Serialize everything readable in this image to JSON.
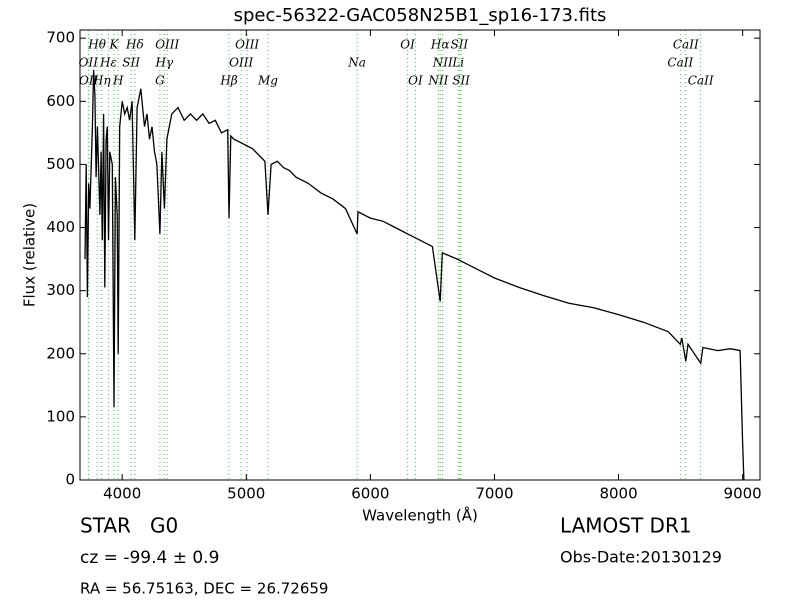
{
  "chart_data": {
    "type": "line",
    "title": "spec-56322-GAC058N25B1_sp16-173.fits",
    "x_label": "Wavelength (Å)",
    "y_label": "Flux (relative)",
    "xlim": [
      3660,
      9140
    ],
    "ylim": [
      0,
      713
    ],
    "xticks": [
      4000,
      5000,
      6000,
      7000,
      8000,
      9000
    ],
    "yticks": [
      0,
      100,
      200,
      300,
      400,
      500,
      600,
      700
    ],
    "color": "#000000",
    "line_color": "#55bb55",
    "x": [
      3700,
      3710,
      3720,
      3730,
      3740,
      3760,
      3770,
      3780,
      3790,
      3800,
      3820,
      3830,
      3840,
      3850,
      3860,
      3870,
      3880,
      3890,
      3900,
      3920,
      3934,
      3945,
      3960,
      3968,
      3980,
      4000,
      4020,
      4040,
      4060,
      4080,
      4102,
      4120,
      4150,
      4180,
      4200,
      4220,
      4240,
      4260,
      4280,
      4304,
      4320,
      4340,
      4360,
      4380,
      4400,
      4450,
      4500,
      4550,
      4600,
      4650,
      4700,
      4750,
      4800,
      4850,
      4861,
      4875,
      4900,
      4950,
      5000,
      5050,
      5100,
      5150,
      5175,
      5200,
      5250,
      5300,
      5350,
      5400,
      5500,
      5600,
      5700,
      5800,
      5893,
      5900,
      6000,
      6100,
      6200,
      6300,
      6400,
      6500,
      6563,
      6580,
      6700,
      6800,
      6900,
      7000,
      7200,
      7400,
      7600,
      7800,
      8000,
      8200,
      8400,
      8498,
      8510,
      8542,
      8560,
      8662,
      8680,
      8800,
      8900,
      8980,
      9000,
      9010
    ],
    "values": [
      350,
      500,
      290,
      470,
      430,
      560,
      650,
      610,
      480,
      560,
      420,
      520,
      380,
      580,
      305,
      540,
      560,
      380,
      520,
      500,
      115,
      480,
      420,
      200,
      560,
      600,
      580,
      590,
      570,
      600,
      380,
      590,
      620,
      560,
      580,
      540,
      560,
      520,
      500,
      390,
      520,
      430,
      540,
      560,
      580,
      590,
      570,
      580,
      570,
      580,
      565,
      570,
      550,
      555,
      415,
      545,
      540,
      535,
      530,
      525,
      515,
      505,
      420,
      500,
      505,
      495,
      490,
      480,
      470,
      455,
      445,
      430,
      390,
      425,
      415,
      410,
      400,
      390,
      380,
      370,
      283,
      360,
      350,
      340,
      330,
      320,
      305,
      292,
      280,
      273,
      262,
      250,
      235,
      215,
      225,
      188,
      215,
      185,
      210,
      205,
      208,
      205,
      60,
      0
    ],
    "line_rows": [
      [
        {
          "label": "Hθ",
          "x": 3798
        },
        {
          "label": "K",
          "x": 3934
        },
        {
          "label": "Hδ",
          "x": 4102
        },
        {
          "label": "OIII",
          "x": 4363
        },
        {
          "label": "OIII",
          "x": 5007
        },
        {
          "label": "OI",
          "x": 6300
        },
        {
          "label": "Hα",
          "x": 6563
        },
        {
          "label": "SII",
          "x": 6717
        },
        {
          "label": "CaII",
          "x": 8542
        }
      ],
      [
        {
          "label": "OII",
          "x": 3727
        },
        {
          "label": "Hε",
          "x": 3889
        },
        {
          "label": "SII",
          "x": 4072
        },
        {
          "label": "Hγ",
          "x": 4340
        },
        {
          "label": "OIII",
          "x": 4959
        },
        {
          "label": "Na",
          "x": 5893
        },
        {
          "label": "NII",
          "x": 6583
        },
        {
          "label": "Li",
          "x": 6708
        },
        {
          "label": "CaII",
          "x": 8498
        }
      ],
      [
        {
          "label": "OII",
          "x": 3730
        },
        {
          "label": "Hη",
          "x": 3835
        },
        {
          "label": "H",
          "x": 3968
        },
        {
          "label": "G",
          "x": 4304
        },
        {
          "label": "Hβ",
          "x": 4861
        },
        {
          "label": "Mg",
          "x": 5175
        },
        {
          "label": "OI",
          "x": 6363
        },
        {
          "label": "NII",
          "x": 6548
        },
        {
          "label": "SII",
          "x": 6731
        },
        {
          "label": "CaII",
          "x": 8662
        }
      ]
    ],
    "info": {
      "class": "STAR",
      "subclass": "G0",
      "cz": "cz = -99.4 ± 0.9",
      "coords": "RA = 56.75163, DEC = 26.72659",
      "release": "LAMOST DR1",
      "date": "Obs-Date:20130129"
    }
  }
}
